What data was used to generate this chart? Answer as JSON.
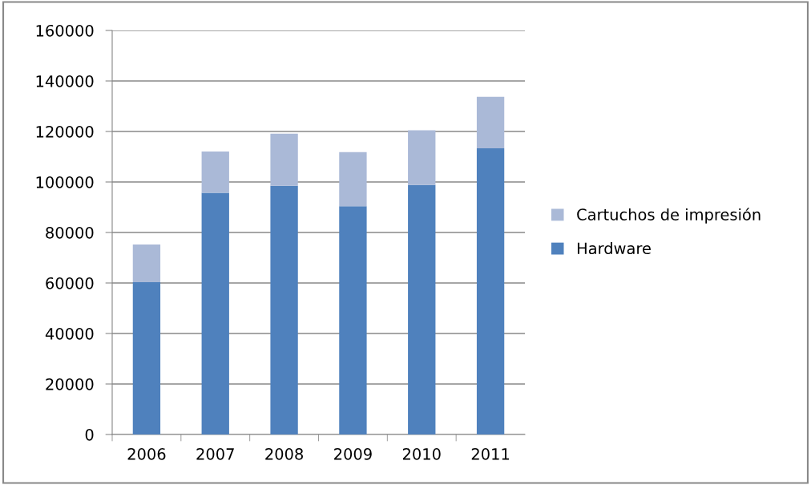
{
  "chart_data": {
    "type": "bar",
    "stacked": true,
    "categories": [
      "2006",
      "2007",
      "2008",
      "2009",
      "2010",
      "2011"
    ],
    "series": [
      {
        "name": "Hardware",
        "color": "#4f81bd",
        "values": [
          60300,
          95700,
          98500,
          90400,
          98800,
          113300
        ]
      },
      {
        "name": "Cartuchos de impresión",
        "color": "#aab9d7",
        "values": [
          14900,
          16400,
          20600,
          21400,
          21700,
          20400
        ]
      }
    ],
    "ylim": [
      0,
      160000
    ],
    "yticks": [
      0,
      20000,
      40000,
      60000,
      80000,
      100000,
      120000,
      140000,
      160000
    ],
    "grid": "y",
    "legend": "right"
  }
}
